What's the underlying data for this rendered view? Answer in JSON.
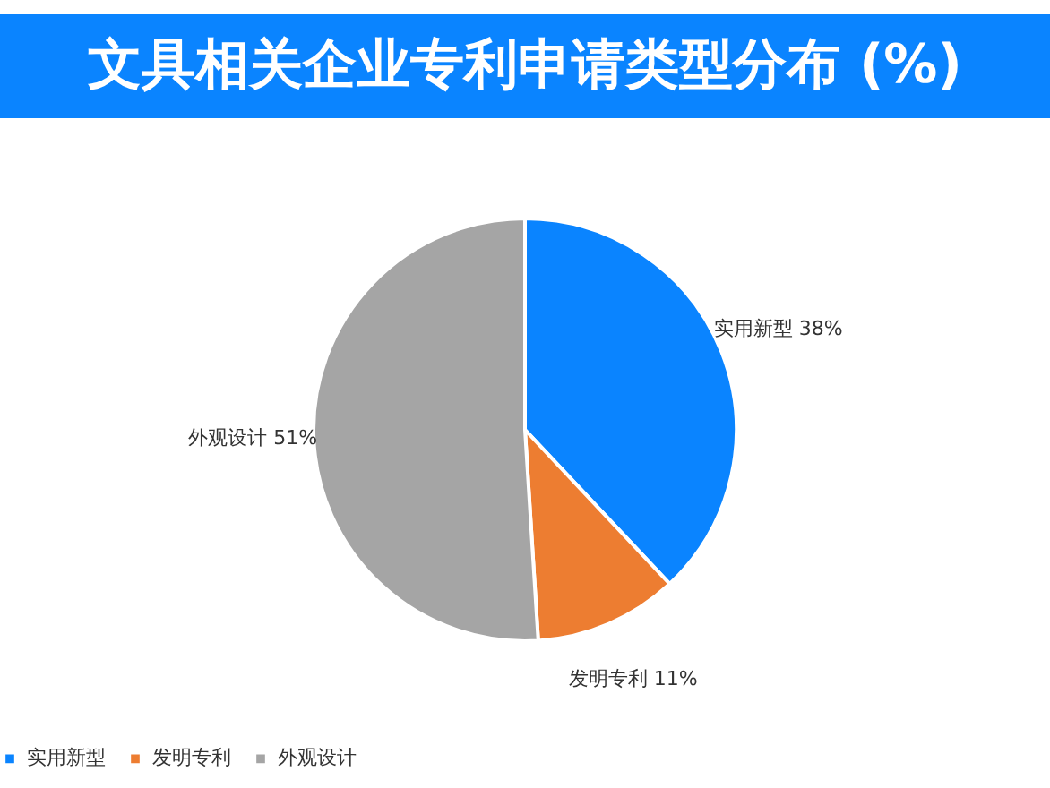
{
  "chart_data": {
    "type": "pie",
    "title": "文具相关企业专利申请类型分布 (%)",
    "categories": [
      "实用新型",
      "发明专利",
      "外观设计"
    ],
    "values": [
      38,
      11,
      51
    ],
    "value_labels": [
      "38%",
      "11%",
      "51%"
    ],
    "colors": [
      "#0a84ff",
      "#ed7d31",
      "#a5a5a5"
    ],
    "legend": "bottom"
  }
}
